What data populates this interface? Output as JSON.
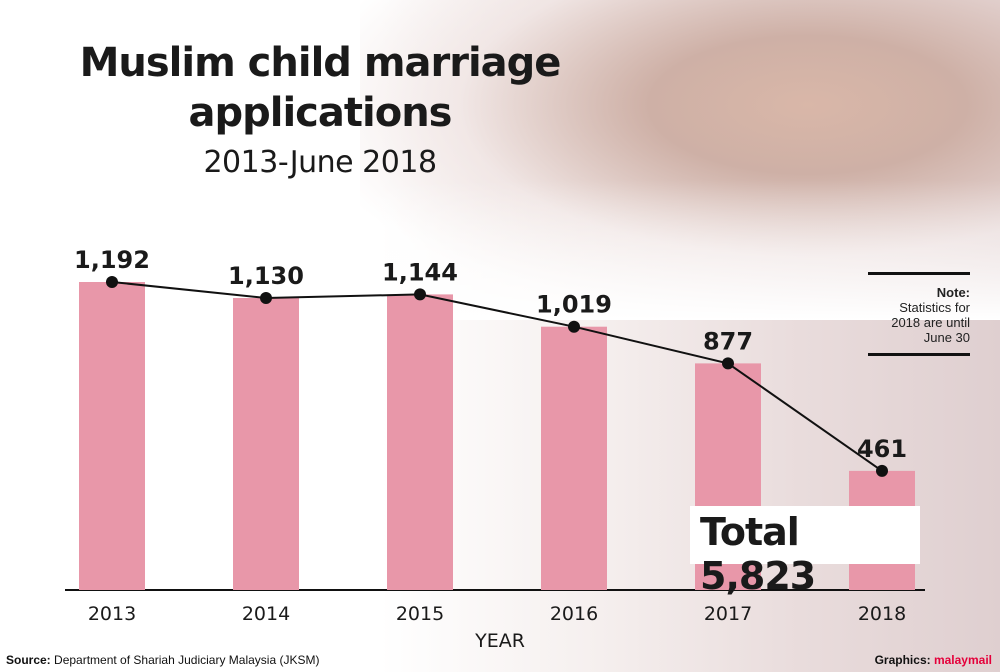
{
  "title": "Muslim child marriage applications",
  "subtitle": "2013-June 2018",
  "note": {
    "label": "Note:",
    "text": "Statistics for 2018 are until June 30"
  },
  "total": "Total 5,823",
  "source_label": "Source:",
  "source_text": "Department of Shariah Judiciary Malaysia (JKSM)",
  "credit_label": "Graphics:",
  "credit_brand": "malaymail",
  "colors": {
    "bar": "#e897a9",
    "line": "#111111"
  },
  "chart_data": {
    "type": "bar",
    "categories": [
      "2013",
      "2014",
      "2015",
      "2016",
      "2017",
      "2018"
    ],
    "values": [
      1192,
      1130,
      1144,
      1019,
      877,
      461
    ],
    "value_labels": [
      "1,192",
      "1,130",
      "1,144",
      "1,019",
      "877",
      "461"
    ],
    "xlabel": "YEAR",
    "ylabel": "",
    "line_overlay": true
  }
}
